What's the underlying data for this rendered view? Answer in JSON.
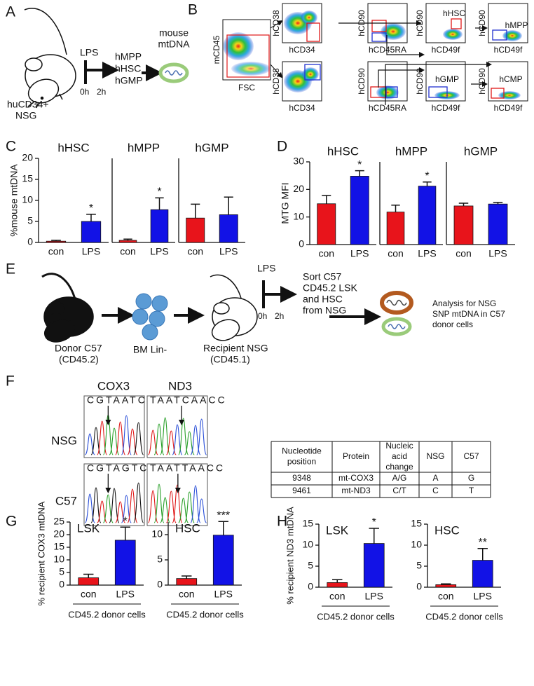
{
  "panel_labels": [
    "A",
    "B",
    "C",
    "D",
    "E",
    "F",
    "G",
    "H"
  ],
  "panel_a": {
    "host": [
      "huCD34+",
      "NSG"
    ],
    "treatment": "LPS",
    "times": [
      "0h",
      "2h"
    ],
    "populations": [
      "hMPP",
      "hHSC",
      "hGMP"
    ],
    "readout": [
      "mouse",
      "mtDNA"
    ]
  },
  "panel_b": {
    "gate_plot": {
      "y": "mCD45",
      "x": "FSC"
    },
    "plots": [
      {
        "y": "hCD38",
        "x": "hCD34"
      },
      {
        "y": "hCD90",
        "x": "hCD45RA"
      },
      {
        "y": "hCD90",
        "x": "hCD49f",
        "gate": "hHSC"
      },
      {
        "y": "hCD90",
        "x": "hCD49f",
        "gate": "hMPP"
      },
      {
        "y": "hCD38",
        "x": "hCD34"
      },
      {
        "y": "hCD90",
        "x": "hCD45RA"
      },
      {
        "y": "hCD90",
        "x": "hCD49f",
        "gate": "hGMP"
      },
      {
        "y": "hCD90",
        "x": "hCD49f",
        "gate": "hCMP"
      }
    ]
  },
  "panel_e": {
    "donor": [
      "Donor C57",
      "(CD45.2)"
    ],
    "cells": "BM Lin-",
    "recipient": [
      "Recipient NSG",
      "(CD45.1)"
    ],
    "treatment": "LPS",
    "times": [
      "0h",
      "2h"
    ],
    "sort": [
      "Sort C57",
      "CD45.2 LSK",
      "and HSC",
      "from NSG"
    ],
    "analysis": [
      "Analysis for NSG",
      "SNP mtDNA in  C57",
      "donor cells"
    ]
  },
  "panel_f": {
    "genes": [
      "COX3",
      "ND3"
    ],
    "strains": [
      "NSG",
      "C57"
    ],
    "sequences": [
      [
        "CGTAATCTG",
        "TAATCAACC"
      ],
      [
        "CGTAGTCTG",
        "TAATTAACC"
      ]
    ],
    "table": {
      "header": [
        [
          "Nucleotide",
          "position"
        ],
        [
          "Protein"
        ],
        [
          "Nucleic",
          "acid",
          "change"
        ],
        [
          "NSG"
        ],
        [
          "C57"
        ]
      ],
      "rows": [
        [
          "9348",
          "mt-COX3",
          "A/G",
          "A",
          "G"
        ],
        [
          "9461",
          "mt-ND3",
          "C/T",
          "C",
          "T"
        ]
      ]
    }
  },
  "chart_data": [
    {
      "type": "bar",
      "title": "hHSC",
      "ylabel": "%mouse mtDNA",
      "categories": [
        "con",
        "LPS"
      ],
      "values": [
        0.3,
        5
      ],
      "errors": [
        0.2,
        1.7
      ],
      "value_annotations": [
        null,
        "*"
      ],
      "colors": [
        "#e8141b",
        "#1212e6"
      ],
      "ylim": [
        0,
        20
      ],
      "yticks": [
        0,
        5,
        10,
        15,
        20
      ]
    },
    {
      "type": "bar",
      "title": "hMPP",
      "categories": [
        "con",
        "LPS"
      ],
      "values": [
        0.5,
        7.8
      ],
      "errors": [
        0.3,
        2.8
      ],
      "value_annotations": [
        null,
        "*"
      ],
      "colors": [
        "#e8141b",
        "#1212e6"
      ],
      "ylim": [
        0,
        20
      ]
    },
    {
      "type": "bar",
      "title": "hGMP",
      "categories": [
        "con",
        "LPS"
      ],
      "values": [
        5.8,
        6.6
      ],
      "errors": [
        3.3,
        4.2
      ],
      "colors": [
        "#e8141b",
        "#1212e6"
      ],
      "ylim": [
        0,
        20
      ]
    },
    {
      "type": "bar",
      "title": "hHSC",
      "ylabel": "MTG MFI",
      "categories": [
        "con",
        "LPS"
      ],
      "values": [
        14.8,
        24.8
      ],
      "errors": [
        3,
        2
      ],
      "value_annotations": [
        null,
        "*"
      ],
      "colors": [
        "#e8141b",
        "#1212e6"
      ],
      "ylim": [
        0,
        30
      ],
      "yticks": [
        0,
        10,
        20,
        30
      ]
    },
    {
      "type": "bar",
      "title": "hMPP",
      "categories": [
        "con",
        "LPS"
      ],
      "values": [
        11.8,
        21.2
      ],
      "errors": [
        2.5,
        1.5
      ],
      "value_annotations": [
        null,
        "*"
      ],
      "colors": [
        "#e8141b",
        "#1212e6"
      ],
      "ylim": [
        0,
        30
      ]
    },
    {
      "type": "bar",
      "title": "hGMP",
      "categories": [
        "con",
        "LPS"
      ],
      "values": [
        14,
        14.7
      ],
      "errors": [
        1,
        0.6
      ],
      "colors": [
        "#e8141b",
        "#1212e6"
      ],
      "ylim": [
        0,
        30
      ]
    },
    {
      "type": "bar",
      "title": "LSK",
      "ylabel": "% recipient COX3 mtDNA",
      "xlabel": "CD45.2 donor cells",
      "categories": [
        "con",
        "LPS"
      ],
      "values": [
        2.9,
        17.8
      ],
      "errors": [
        1.4,
        5.2
      ],
      "value_annotations": [
        null,
        "*"
      ],
      "colors": [
        "#e8141b",
        "#1212e6"
      ],
      "ylim": [
        0,
        25
      ],
      "yticks": [
        0,
        5,
        10,
        15,
        20,
        25
      ]
    },
    {
      "type": "bar",
      "title": "HSC",
      "xlabel": "CD45.2 donor cells",
      "categories": [
        "con",
        "LPS"
      ],
      "values": [
        1.3,
        9.9
      ],
      "errors": [
        0.5,
        2.7
      ],
      "value_annotations": [
        null,
        "***"
      ],
      "colors": [
        "#e8141b",
        "#1212e6"
      ],
      "ylim": [
        0,
        12.5
      ],
      "yticks": [
        0,
        5,
        10
      ]
    },
    {
      "type": "bar",
      "title": "LSK",
      "ylabel": "% recipient ND3 mtDNA",
      "xlabel": "CD45.2 donor cells",
      "categories": [
        "con",
        "LPS"
      ],
      "values": [
        1.1,
        10.4
      ],
      "errors": [
        0.7,
        3.6
      ],
      "value_annotations": [
        null,
        "*"
      ],
      "colors": [
        "#e8141b",
        "#1212e6"
      ],
      "ylim": [
        0,
        15
      ],
      "yticks": [
        0,
        5,
        10,
        15
      ]
    },
    {
      "type": "bar",
      "title": "HSC",
      "xlabel": "CD45.2 donor cells",
      "categories": [
        "con",
        "LPS"
      ],
      "values": [
        0.6,
        6.4
      ],
      "errors": [
        0.2,
        2.8
      ],
      "value_annotations": [
        null,
        "**"
      ],
      "colors": [
        "#e8141b",
        "#1212e6"
      ],
      "ylim": [
        0,
        15
      ],
      "yticks": [
        0,
        5,
        10,
        15
      ]
    }
  ]
}
